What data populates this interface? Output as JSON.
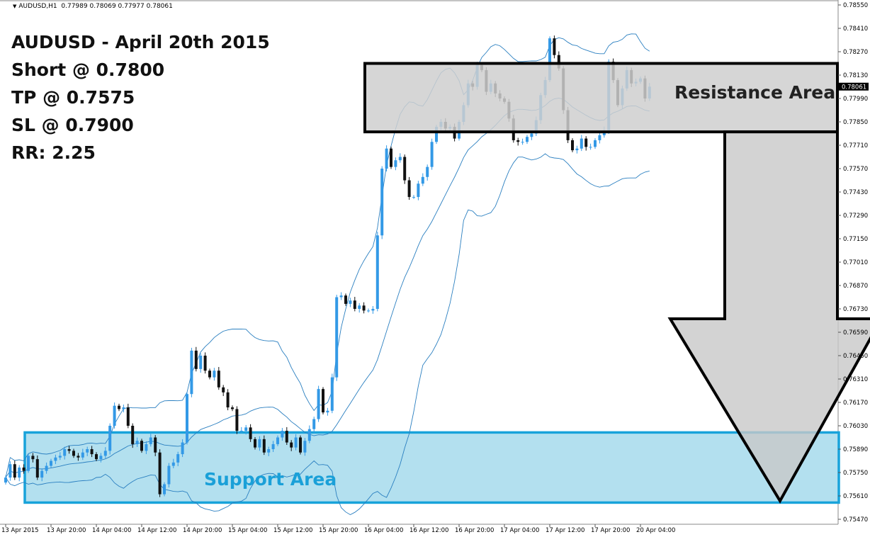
{
  "header": {
    "symbol": "AUDUSD,H1",
    "ohlc": "0.77989 0.78069 0.77977 0.78061"
  },
  "trade": {
    "lines": [
      "AUDUSD - April 20th 2015",
      "Short @ 0.7800",
      "TP @ 0.7575",
      "SL @ 0.7900",
      "RR: 2.25"
    ]
  },
  "annotations": {
    "resistance_label": "Resistance Area",
    "support_label": "Support Area"
  },
  "current_price_label": "0.78061",
  "colors": {
    "bull": "#3399e6",
    "bear": "#111111",
    "band": "#2a7fc0",
    "resistance_fill": "#cfcfcf",
    "support_fill": "#b3e0ef",
    "support_border": "#18a3da",
    "support_text": "#1aa0d8",
    "arrow_fill": "#c8c8c8"
  },
  "chart_data": {
    "type": "candlestick",
    "title": "AUDUSD,H1",
    "ylim": [
      0.7547,
      0.7855
    ],
    "y_ticks": [
      "0.78550",
      "0.78410",
      "0.78270",
      "0.78130",
      "0.77990",
      "0.77850",
      "0.77710",
      "0.77570",
      "0.77430",
      "0.77290",
      "0.77150",
      "0.77010",
      "0.76870",
      "0.76730",
      "0.76590",
      "0.76450",
      "0.76310",
      "0.76170",
      "0.76030",
      "0.75890",
      "0.75750",
      "0.75610",
      "0.75470"
    ],
    "x_ticks": [
      "13 Apr 2015",
      "13 Apr 20:00",
      "14 Apr 04:00",
      "14 Apr 12:00",
      "14 Apr 20:00",
      "15 Apr 04:00",
      "15 Apr 12:00",
      "15 Apr 20:00",
      "16 Apr 04:00",
      "16 Apr 12:00",
      "16 Apr 20:00",
      "17 Apr 04:00",
      "17 Apr 12:00",
      "17 Apr 20:00",
      "20 Apr 04:00"
    ],
    "grid": false,
    "resistance_zone": [
      0.7779,
      0.782
    ],
    "support_zone": [
      0.7557,
      0.7599
    ],
    "trade_arrow": {
      "from": 0.7779,
      "to": 0.7558
    },
    "current_price": 0.78061,
    "close": [
      0.7572,
      0.758,
      0.7572,
      0.7578,
      0.7576,
      0.7585,
      0.7583,
      0.7572,
      0.7576,
      0.7579,
      0.7582,
      0.7584,
      0.7585,
      0.7589,
      0.7588,
      0.7585,
      0.7584,
      0.7587,
      0.7589,
      0.7586,
      0.7583,
      0.7585,
      0.7588,
      0.7603,
      0.7615,
      0.7613,
      0.7614,
      0.7603,
      0.7592,
      0.7594,
      0.7588,
      0.7592,
      0.7596,
      0.7587,
      0.7562,
      0.7568,
      0.7579,
      0.7581,
      0.7586,
      0.7593,
      0.7622,
      0.7648,
      0.7637,
      0.7645,
      0.7636,
      0.7632,
      0.7636,
      0.7626,
      0.7623,
      0.7614,
      0.7613,
      0.76,
      0.76,
      0.7602,
      0.7595,
      0.759,
      0.7595,
      0.7587,
      0.7589,
      0.7592,
      0.7596,
      0.76,
      0.7593,
      0.759,
      0.7596,
      0.7587,
      0.7594,
      0.7601,
      0.7607,
      0.7625,
      0.7611,
      0.7612,
      0.7632,
      0.768,
      0.7681,
      0.7676,
      0.7678,
      0.7673,
      0.7675,
      0.7672,
      0.7672,
      0.7673,
      0.7717,
      0.7757,
      0.7769,
      0.7758,
      0.7762,
      0.7764,
      0.775,
      0.774,
      0.774,
      0.7748,
      0.7752,
      0.7758,
      0.7773,
      0.7782,
      0.7785,
      0.7781,
      0.7782,
      0.7775,
      0.7785,
      0.7795,
      0.7808,
      0.7806,
      0.7819,
      0.7816,
      0.7803,
      0.7808,
      0.7802,
      0.7799,
      0.7797,
      0.7787,
      0.7774,
      0.7773,
      0.7773,
      0.7776,
      0.7778,
      0.7786,
      0.7801,
      0.781,
      0.7835,
      0.7825,
      0.7817,
      0.7792,
      0.7774,
      0.7768,
      0.7769,
      0.7775,
      0.777,
      0.777,
      0.7774,
      0.7777,
      0.778,
      0.7821,
      0.781,
      0.7795,
      0.7805,
      0.7816,
      0.7808,
      0.7809,
      0.7811,
      0.7799,
      0.78061
    ]
  }
}
